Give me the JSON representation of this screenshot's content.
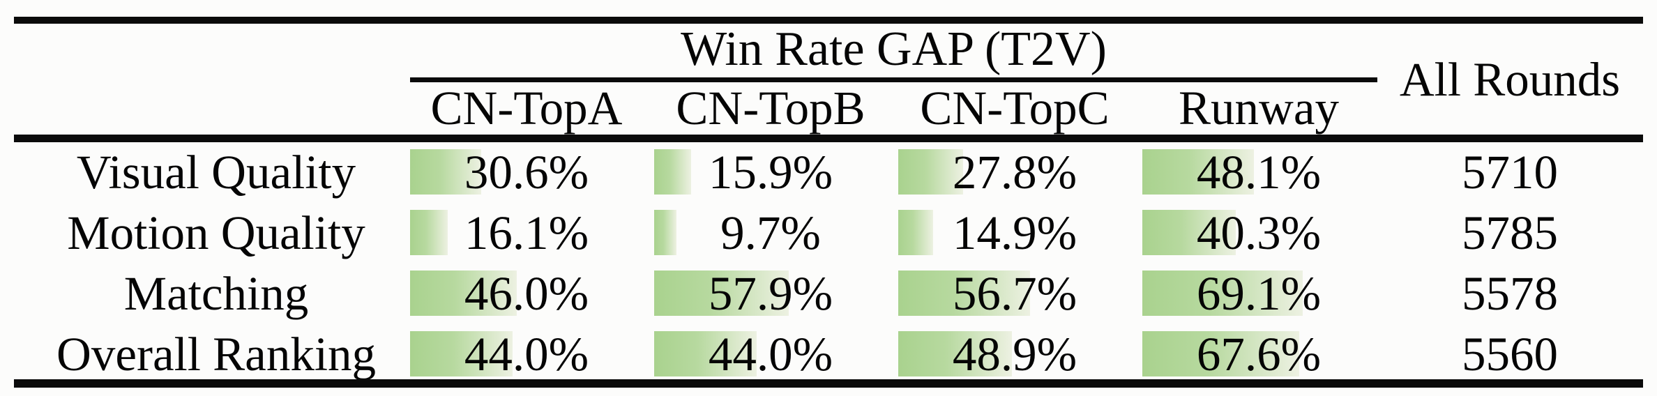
{
  "table": {
    "group_title": "Win Rate GAP (T2V)",
    "columns": [
      "CN-TopA",
      "CN-TopB",
      "CN-TopC",
      "Runway"
    ],
    "all_rounds_header": "All Rounds",
    "rows": [
      {
        "label": "Visual Quality",
        "values": [
          {
            "value": 30.6,
            "display": "30.6%"
          },
          {
            "value": 15.9,
            "display": "15.9%"
          },
          {
            "value": 27.8,
            "display": "27.8%"
          },
          {
            "value": 48.1,
            "display": "48.1%"
          }
        ],
        "rounds": "5710"
      },
      {
        "label": "Motion Quality",
        "values": [
          {
            "value": 16.1,
            "display": "16.1%"
          },
          {
            "value": 9.7,
            "display": "9.7%"
          },
          {
            "value": 14.9,
            "display": "14.9%"
          },
          {
            "value": 40.3,
            "display": "40.3%"
          }
        ],
        "rounds": "5785"
      },
      {
        "label": "Matching",
        "values": [
          {
            "value": 46.0,
            "display": "46.0%"
          },
          {
            "value": 57.9,
            "display": "57.9%"
          },
          {
            "value": 56.7,
            "display": "56.7%"
          },
          {
            "value": 69.1,
            "display": "69.1%"
          }
        ],
        "rounds": "5578"
      },
      {
        "label": "Overall Ranking",
        "values": [
          {
            "value": 44.0,
            "display": "44.0%"
          },
          {
            "value": 44.0,
            "display": "44.0%"
          },
          {
            "value": 48.9,
            "display": "48.9%"
          },
          {
            "value": 67.6,
            "display": "67.6%"
          }
        ],
        "rounds": "5560"
      }
    ],
    "colors": {
      "bar_gradient_start": "#a9d28e",
      "bar_gradient_mid": "#b7d99f",
      "bar_gradient_end": "#edf1e2",
      "rule_color": "#0b0b0b",
      "text_color": "#050505"
    }
  },
  "chart_data": {
    "type": "bar",
    "title": "Win Rate GAP (T2V)",
    "categories": [
      "Visual Quality",
      "Motion Quality",
      "Matching",
      "Overall Ranking"
    ],
    "series": [
      {
        "name": "CN-TopA",
        "values": [
          30.6,
          16.1,
          46.0,
          44.0
        ]
      },
      {
        "name": "CN-TopB",
        "values": [
          15.9,
          9.7,
          57.9,
          44.0
        ]
      },
      {
        "name": "CN-TopC",
        "values": [
          27.8,
          14.9,
          56.7,
          48.9
        ]
      },
      {
        "name": "Runway",
        "values": [
          48.1,
          40.3,
          69.1,
          67.6
        ]
      }
    ],
    "extra_column": {
      "name": "All Rounds",
      "values": [
        5710,
        5785,
        5578,
        5560
      ]
    },
    "unit": "%",
    "xlim": [
      0,
      100
    ],
    "layout": "horizontal in-cell bars, grid off, no legend"
  }
}
